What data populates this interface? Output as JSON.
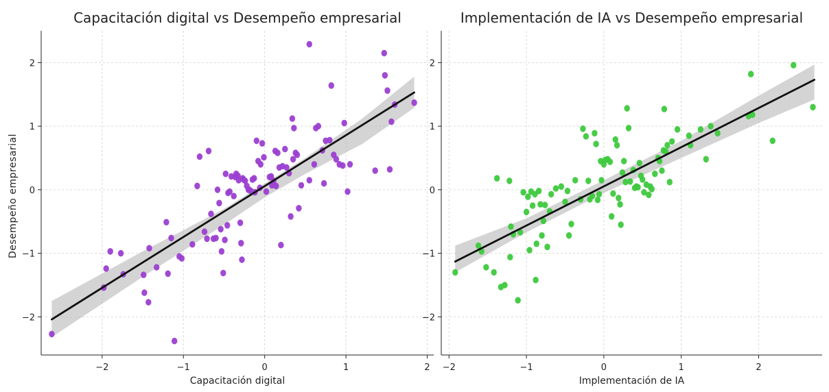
{
  "figure": {
    "ylabel": "Desempeño empresarial"
  },
  "chart_data": [
    {
      "type": "scatter",
      "title": "Capacitación digital vs Desempeño empresarial",
      "xlabel": "Capacitación digital",
      "ylabel": "Desempeño empresarial",
      "xlim": [
        -2.75,
        2.08
      ],
      "ylim": [
        -2.6,
        2.5
      ],
      "xticks": [
        -2,
        -1,
        0,
        1,
        2
      ],
      "yticks": [
        -2,
        -1,
        0,
        1,
        2
      ],
      "grid": true,
      "point_color": "#9b3fd1",
      "fit_line": {
        "x": [
          -2.62,
          1.84
        ],
        "y": [
          -2.04,
          1.53
        ]
      },
      "confidence_band": {
        "x": [
          -2.62,
          -1.5,
          -0.5,
          0,
          0.5,
          1.2,
          1.84
        ],
        "lower": [
          -2.32,
          -1.37,
          -0.55,
          -0.12,
          0.25,
          0.72,
          1.29
        ],
        "upper": [
          -1.75,
          -0.97,
          -0.3,
          0.1,
          0.5,
          1.12,
          1.78
        ]
      },
      "points": [
        [
          -2.62,
          -2.27
        ],
        [
          -1.98,
          -1.54
        ],
        [
          -1.95,
          -1.24
        ],
        [
          -1.9,
          -0.97
        ],
        [
          -1.77,
          -1.0
        ],
        [
          -1.74,
          -1.33
        ],
        [
          -1.49,
          -1.34
        ],
        [
          -1.48,
          -1.62
        ],
        [
          -1.43,
          -1.77
        ],
        [
          -1.42,
          -0.92
        ],
        [
          -1.33,
          -1.22
        ],
        [
          -1.21,
          -0.51
        ],
        [
          -1.19,
          -1.32
        ],
        [
          -1.15,
          -0.76
        ],
        [
          -1.11,
          -2.38
        ],
        [
          -1.05,
          -1.05
        ],
        [
          -1.02,
          -1.08
        ],
        [
          -0.89,
          -0.86
        ],
        [
          -0.83,
          0.06
        ],
        [
          -0.8,
          0.52
        ],
        [
          -0.74,
          -0.66
        ],
        [
          -0.71,
          -0.77
        ],
        [
          -0.69,
          0.61
        ],
        [
          -0.66,
          -0.38
        ],
        [
          -0.63,
          -0.77
        ],
        [
          -0.6,
          -0.76
        ],
        [
          -0.58,
          0.0
        ],
        [
          -0.56,
          -0.21
        ],
        [
          -0.54,
          -0.62
        ],
        [
          -0.53,
          -0.97
        ],
        [
          -0.51,
          -1.31
        ],
        [
          -0.49,
          -0.79
        ],
        [
          -0.48,
          0.25
        ],
        [
          -0.46,
          -0.56
        ],
        [
          -0.45,
          -0.05
        ],
        [
          -0.43,
          -0.03
        ],
        [
          -0.41,
          0.21
        ],
        [
          -0.38,
          -0.1
        ],
        [
          -0.36,
          0.2
        ],
        [
          -0.35,
          0.25
        ],
        [
          -0.33,
          0.22
        ],
        [
          -0.32,
          0.15
        ],
        [
          -0.3,
          -0.52
        ],
        [
          -0.29,
          -0.84
        ],
        [
          -0.28,
          -1.1
        ],
        [
          -0.27,
          0.18
        ],
        [
          -0.26,
          0.16
        ],
        [
          -0.24,
          0.14
        ],
        [
          -0.22,
          0.06
        ],
        [
          -0.2,
          0.0
        ],
        [
          -0.19,
          0.0
        ],
        [
          -0.17,
          -0.02
        ],
        [
          -0.15,
          0.16
        ],
        [
          -0.13,
          0.18
        ],
        [
          -0.12,
          -0.04
        ],
        [
          -0.1,
          0.77
        ],
        [
          -0.08,
          0.45
        ],
        [
          -0.06,
          0.03
        ],
        [
          -0.05,
          0.4
        ],
        [
          -0.03,
          0.73
        ],
        [
          -0.01,
          0.51
        ],
        [
          0.02,
          -0.03
        ],
        [
          0.06,
          0.2
        ],
        [
          0.08,
          0.21
        ],
        [
          0.09,
          0.07
        ],
        [
          0.11,
          0.14
        ],
        [
          0.13,
          0.61
        ],
        [
          0.14,
          0.06
        ],
        [
          0.16,
          0.58
        ],
        [
          0.18,
          0.35
        ],
        [
          0.2,
          -0.87
        ],
        [
          0.22,
          0.37
        ],
        [
          0.25,
          0.64
        ],
        [
          0.27,
          0.35
        ],
        [
          0.3,
          0.26
        ],
        [
          0.32,
          -0.42
        ],
        [
          0.34,
          1.12
        ],
        [
          0.35,
          0.48
        ],
        [
          0.36,
          0.97
        ],
        [
          0.38,
          0.58
        ],
        [
          0.4,
          0.55
        ],
        [
          0.42,
          -0.29
        ],
        [
          0.45,
          0.07
        ],
        [
          0.55,
          0.15
        ],
        [
          0.55,
          2.29
        ],
        [
          0.61,
          0.4
        ],
        [
          0.63,
          0.97
        ],
        [
          0.66,
          1.0
        ],
        [
          0.71,
          0.62
        ],
        [
          0.73,
          0.1
        ],
        [
          0.75,
          0.77
        ],
        [
          0.8,
          0.78
        ],
        [
          0.82,
          1.64
        ],
        [
          0.85,
          0.55
        ],
        [
          0.88,
          0.48
        ],
        [
          0.92,
          0.4
        ],
        [
          0.96,
          0.38
        ],
        [
          0.98,
          1.05
        ],
        [
          1.02,
          -0.03
        ],
        [
          1.05,
          0.4
        ],
        [
          1.36,
          0.3
        ],
        [
          1.47,
          2.15
        ],
        [
          1.48,
          1.8
        ],
        [
          1.51,
          1.56
        ],
        [
          1.54,
          0.32
        ],
        [
          1.56,
          1.07
        ],
        [
          1.6,
          1.34
        ],
        [
          1.84,
          1.37
        ]
      ]
    },
    {
      "type": "scatter",
      "title": "Implementación de IA vs Desempeño empresarial",
      "xlabel": "Implementación de IA",
      "ylabel": "",
      "xlim": [
        -2.1,
        2.82
      ],
      "ylim": [
        -2.6,
        2.5
      ],
      "xticks": [
        -2,
        -1,
        0,
        1,
        2
      ],
      "yticks": [
        -2,
        -1,
        0,
        1,
        2
      ],
      "grid": true,
      "point_color": "#3ec93e",
      "fit_line": {
        "x": [
          -1.92,
          2.72
        ],
        "y": [
          -1.13,
          1.73
        ]
      },
      "confidence_band": {
        "x": [
          -1.92,
          -1.0,
          0,
          1.0,
          2.0,
          2.72
        ],
        "lower": [
          -1.3,
          -0.67,
          -0.05,
          0.5,
          1.05,
          1.42
        ],
        "upper": [
          -0.88,
          -0.45,
          0.15,
          0.77,
          1.48,
          1.97
        ]
      },
      "points": [
        [
          -1.92,
          -1.3
        ],
        [
          -1.62,
          -0.88
        ],
        [
          -1.58,
          -0.97
        ],
        [
          -1.52,
          -1.22
        ],
        [
          -1.42,
          -1.3
        ],
        [
          -1.38,
          0.18
        ],
        [
          -1.33,
          -1.53
        ],
        [
          -1.28,
          -1.5
        ],
        [
          -1.22,
          0.14
        ],
        [
          -1.21,
          -1.06
        ],
        [
          -1.2,
          -0.58
        ],
        [
          -1.17,
          -0.7
        ],
        [
          -1.11,
          -1.74
        ],
        [
          -1.08,
          -0.67
        ],
        [
          -1.04,
          -0.04
        ],
        [
          -1.0,
          -0.35
        ],
        [
          -0.98,
          -0.11
        ],
        [
          -0.96,
          -0.95
        ],
        [
          -0.94,
          -0.03
        ],
        [
          -0.92,
          -0.25
        ],
        [
          -0.89,
          -0.07
        ],
        [
          -0.88,
          -1.42
        ],
        [
          -0.87,
          -0.85
        ],
        [
          -0.84,
          -0.02
        ],
        [
          -0.82,
          -0.23
        ],
        [
          -0.8,
          -0.72
        ],
        [
          -0.78,
          -0.49
        ],
        [
          -0.76,
          -0.24
        ],
        [
          -0.73,
          -0.9
        ],
        [
          -0.7,
          -0.34
        ],
        [
          -0.68,
          -0.07
        ],
        [
          -0.62,
          0.02
        ],
        [
          -0.55,
          0.05
        ],
        [
          -0.5,
          -0.19
        ],
        [
          -0.47,
          -0.02
        ],
        [
          -0.45,
          -0.72
        ],
        [
          -0.42,
          -0.54
        ],
        [
          -0.37,
          0.15
        ],
        [
          -0.3,
          -0.15
        ],
        [
          -0.27,
          0.96
        ],
        [
          -0.23,
          0.84
        ],
        [
          -0.2,
          0.14
        ],
        [
          -0.18,
          -0.15
        ],
        [
          -0.15,
          -0.1
        ],
        [
          -0.12,
          0.89
        ],
        [
          -0.1,
          0.72
        ],
        [
          -0.08,
          -0.16
        ],
        [
          -0.06,
          -0.07
        ],
        [
          -0.04,
          0.45
        ],
        [
          -0.03,
          0.15
        ],
        [
          0.0,
          0.4
        ],
        [
          0.02,
          0.47
        ],
        [
          0.05,
          0.48
        ],
        [
          0.08,
          0.44
        ],
        [
          0.1,
          -0.42
        ],
        [
          0.12,
          -0.06
        ],
        [
          0.15,
          0.79
        ],
        [
          0.17,
          0.7
        ],
        [
          0.19,
          -0.13
        ],
        [
          0.21,
          -0.23
        ],
        [
          0.22,
          -0.55
        ],
        [
          0.24,
          0.27
        ],
        [
          0.26,
          0.45
        ],
        [
          0.28,
          0.12
        ],
        [
          0.3,
          1.28
        ],
        [
          0.32,
          0.97
        ],
        [
          0.34,
          0.13
        ],
        [
          0.38,
          0.31
        ],
        [
          0.4,
          0.03
        ],
        [
          0.42,
          0.05
        ],
        [
          0.44,
          0.04
        ],
        [
          0.46,
          0.42
        ],
        [
          0.48,
          0.22
        ],
        [
          0.5,
          0.16
        ],
        [
          0.52,
          -0.04
        ],
        [
          0.55,
          0.08
        ],
        [
          0.58,
          -0.08
        ],
        [
          0.6,
          0.05
        ],
        [
          0.62,
          0.01
        ],
        [
          0.66,
          0.25
        ],
        [
          0.7,
          0.5
        ],
        [
          0.72,
          0.45
        ],
        [
          0.75,
          0.3
        ],
        [
          0.77,
          0.62
        ],
        [
          0.78,
          1.27
        ],
        [
          0.8,
          0.6
        ],
        [
          0.82,
          0.7
        ],
        [
          0.85,
          0.12
        ],
        [
          0.88,
          0.76
        ],
        [
          0.95,
          0.95
        ],
        [
          1.1,
          0.85
        ],
        [
          1.12,
          0.7
        ],
        [
          1.25,
          0.95
        ],
        [
          1.32,
          0.48
        ],
        [
          1.38,
          1.0
        ],
        [
          1.47,
          0.89
        ],
        [
          1.87,
          1.16
        ],
        [
          1.9,
          1.82
        ],
        [
          1.92,
          1.18
        ],
        [
          2.18,
          0.77
        ],
        [
          2.45,
          1.96
        ],
        [
          2.7,
          1.3
        ]
      ]
    }
  ]
}
